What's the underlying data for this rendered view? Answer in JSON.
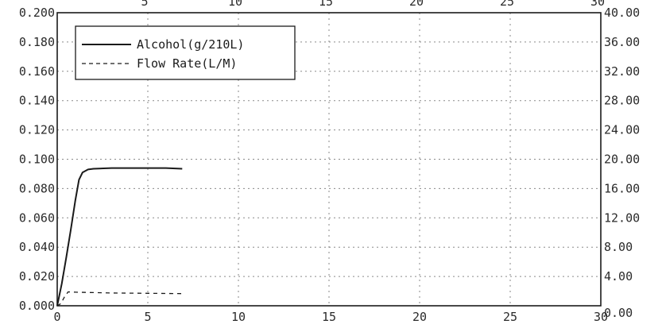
{
  "chart_data": {
    "type": "line",
    "x_axis": {
      "range": [
        0,
        30
      ],
      "ticks": [
        0,
        5,
        10,
        15,
        20,
        25,
        30
      ],
      "tick_labels": [
        "0",
        "5",
        "10",
        "15",
        "20",
        "25",
        "30"
      ],
      "top_ticks": [
        5,
        10,
        15,
        20,
        25,
        30
      ],
      "top_tick_labels": [
        "5",
        "10",
        "15",
        "20",
        "25",
        "30"
      ]
    },
    "y_left": {
      "range": [
        0,
        0.2
      ],
      "ticks": [
        0,
        0.02,
        0.04,
        0.06,
        0.08,
        0.1,
        0.12,
        0.14,
        0.16,
        0.18,
        0.2
      ],
      "tick_labels": [
        "0.000",
        "0.020",
        "0.040",
        "0.060",
        "0.080",
        "0.100",
        "0.120",
        "0.140",
        "0.160",
        "0.180",
        "0.200"
      ]
    },
    "y_right": {
      "range": [
        0,
        40
      ],
      "ticks": [
        0,
        4,
        8,
        12,
        16,
        20,
        24,
        28,
        32,
        36,
        40
      ],
      "tick_labels": [
        "0.00",
        "4.00",
        "8.00",
        "12.00",
        "16.00",
        "20.00",
        "24.00",
        "28.00",
        "32.00",
        "36.00",
        "40.00"
      ]
    },
    "grid": true,
    "legend": {
      "position": "top-left"
    },
    "series": [
      {
        "name": "Alcohol(g/210L)",
        "axis": "left",
        "style": "solid",
        "x": [
          0,
          0.25,
          0.5,
          0.75,
          1.0,
          1.2,
          1.4,
          1.7,
          2.0,
          3.0,
          4.0,
          5.0,
          6.0,
          6.9
        ],
        "y": [
          0,
          0.015,
          0.033,
          0.052,
          0.072,
          0.086,
          0.091,
          0.093,
          0.0935,
          0.094,
          0.094,
          0.094,
          0.094,
          0.0935
        ]
      },
      {
        "name": "Flow Rate(L/M)",
        "axis": "right",
        "style": "dashed",
        "x": [
          0,
          0.2,
          0.4,
          0.6,
          1.0,
          2.0,
          3.0,
          4.0,
          5.0,
          6.0,
          6.9
        ],
        "y": [
          0,
          0.3,
          1.2,
          1.9,
          1.85,
          1.8,
          1.75,
          1.72,
          1.7,
          1.68,
          1.66
        ]
      }
    ]
  }
}
